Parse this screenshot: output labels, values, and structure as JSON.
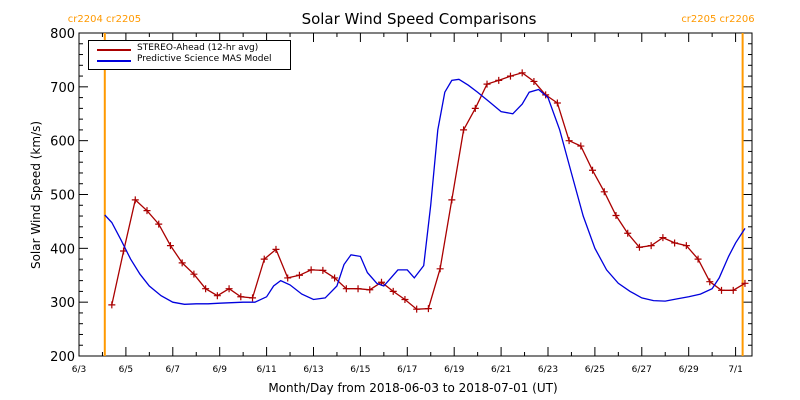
{
  "chart_data": {
    "type": "line",
    "title": "Solar Wind Speed Comparisons",
    "xlabel": "Month/Day from 2018-06-03 to 2018-07-01 (UT)",
    "ylabel": "Solar Wind Speed (km/s)",
    "xlim": [
      0,
      28.7
    ],
    "ylim": [
      200,
      800
    ],
    "xticks": [
      {
        "day": 0,
        "label": "6/3"
      },
      {
        "day": 2,
        "label": "6/5"
      },
      {
        "day": 4,
        "label": "6/7"
      },
      {
        "day": 6,
        "label": "6/9"
      },
      {
        "day": 8,
        "label": "6/11"
      },
      {
        "day": 10,
        "label": "6/13"
      },
      {
        "day": 12,
        "label": "6/15"
      },
      {
        "day": 14,
        "label": "6/17"
      },
      {
        "day": 16,
        "label": "6/19"
      },
      {
        "day": 18,
        "label": "6/21"
      },
      {
        "day": 20,
        "label": "6/23"
      },
      {
        "day": 22,
        "label": "6/25"
      },
      {
        "day": 24,
        "label": "6/27"
      },
      {
        "day": 26,
        "label": "6/29"
      },
      {
        "day": 28,
        "label": "7/1"
      }
    ],
    "yticks": [
      200,
      300,
      400,
      500,
      600,
      700,
      800
    ],
    "legend_position": "top-left",
    "carrington_markers": [
      {
        "day": 1.1,
        "left_label": "cr2204",
        "right_label": "cr2205",
        "label_side": "left",
        "color": "#ff9900"
      },
      {
        "day": 28.3,
        "left_label": "cr2205",
        "right_label": "cr2206",
        "label_side": "right",
        "color": "#ff9900"
      }
    ],
    "series": [
      {
        "name": "STEREO-Ahead (12-hr avg)",
        "color": "#aa0000",
        "markers": true,
        "x": [
          1.4,
          1.9,
          2.4,
          2.9,
          3.4,
          3.9,
          4.4,
          4.9,
          5.4,
          5.9,
          6.4,
          6.9,
          7.4,
          7.9,
          8.4,
          8.9,
          9.4,
          9.9,
          10.4,
          10.9,
          11.4,
          11.9,
          12.4,
          12.9,
          13.4,
          13.9,
          14.4,
          14.9,
          15.4,
          15.9,
          16.4,
          16.9,
          17.4,
          17.9,
          18.4,
          18.9,
          19.4,
          19.9,
          20.4,
          20.9,
          21.4,
          21.9,
          22.4,
          22.9,
          23.4,
          23.9,
          24.4,
          24.9,
          25.4,
          25.9,
          26.4,
          26.9,
          27.4,
          27.9,
          28.4
        ],
        "y": [
          295,
          395,
          490,
          470,
          445,
          405,
          373,
          352,
          325,
          312,
          325,
          310,
          308,
          380,
          398,
          345,
          350,
          360,
          359,
          345,
          325,
          325,
          323,
          337,
          320,
          305,
          287,
          288,
          362,
          490,
          620,
          660,
          705,
          712,
          720,
          726,
          710,
          685,
          670,
          600,
          590,
          545,
          505,
          461,
          428,
          402,
          405,
          420,
          410,
          405,
          380,
          338,
          322,
          322,
          335
        ]
      },
      {
        "name": "Predictive Science MAS Model",
        "color": "#0000dd",
        "markers": false,
        "x": [
          1.1,
          1.4,
          1.8,
          2.2,
          2.6,
          3.0,
          3.5,
          4.0,
          4.5,
          5.0,
          5.5,
          6.0,
          6.5,
          7.0,
          7.5,
          8.0,
          8.3,
          8.6,
          9.0,
          9.5,
          10.0,
          10.5,
          11.0,
          11.3,
          11.6,
          12.0,
          12.3,
          12.7,
          13.0,
          13.3,
          13.6,
          14.0,
          14.3,
          14.7,
          15.0,
          15.3,
          15.6,
          15.9,
          16.2,
          16.6,
          17.0,
          17.5,
          18.0,
          18.5,
          18.9,
          19.2,
          19.6,
          20.0,
          20.5,
          21.0,
          21.5,
          22.0,
          22.5,
          23.0,
          23.5,
          24.0,
          24.5,
          25.0,
          25.5,
          26.0,
          26.5,
          27.0,
          27.3,
          27.7,
          28.0,
          28.4
        ],
        "y": [
          462,
          448,
          415,
          380,
          352,
          330,
          312,
          300,
          296,
          297,
          297,
          298,
          299,
          300,
          300,
          310,
          330,
          340,
          332,
          315,
          305,
          308,
          330,
          370,
          388,
          385,
          355,
          335,
          330,
          345,
          360,
          360,
          345,
          368,
          480,
          620,
          690,
          712,
          714,
          703,
          690,
          672,
          654,
          650,
          668,
          690,
          695,
          680,
          620,
          540,
          460,
          400,
          360,
          335,
          320,
          308,
          303,
          302,
          306,
          310,
          315,
          325,
          345,
          385,
          410,
          437
        ]
      }
    ]
  }
}
